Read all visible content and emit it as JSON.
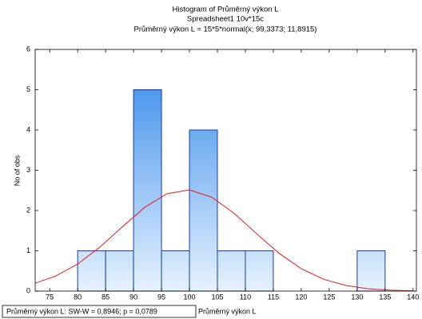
{
  "chart_data": {
    "type": "histogram",
    "title": "Histogram of Průměrný výkon L",
    "subtitle": "Spreadsheet1 10v*15c",
    "curve_label": "Průměrný výkon L = 15*5*normal(x; 99,3373; 11,8915)",
    "xlabel": "Průměrný výkon L",
    "ylabel": "No of obs",
    "test_label": "Průměrný výkon L:  SW-W = 0,8946; p = 0,0789",
    "bins": [
      80,
      85,
      90,
      95,
      100,
      105,
      110,
      115,
      120,
      125,
      130,
      135
    ],
    "counts": [
      1,
      1,
      5,
      1,
      4,
      1,
      1,
      0,
      0,
      0,
      1
    ],
    "color": "#2f86e8",
    "edge_color": "#1c3f9e",
    "curve": {
      "color": "#e8191b",
      "x": [
        72,
        76,
        80,
        84,
        88,
        92,
        96,
        100,
        104,
        108,
        112,
        116,
        120,
        124,
        128,
        132,
        136,
        140
      ],
      "values": [
        0.179,
        0.367,
        0.671,
        1.095,
        1.597,
        2.08,
        2.419,
        2.512,
        2.33,
        1.93,
        1.427,
        0.942,
        0.556,
        0.293,
        0.138,
        0.058,
        0.022,
        0.007
      ]
    },
    "xlim": [
      72.4,
      140.6
    ],
    "ylim": [
      0,
      6
    ],
    "xticks": [
      75,
      80,
      85,
      90,
      95,
      100,
      105,
      110,
      115,
      120,
      125,
      130,
      135,
      140
    ],
    "yticks": [
      0,
      1,
      2,
      3,
      4,
      5,
      6
    ]
  }
}
